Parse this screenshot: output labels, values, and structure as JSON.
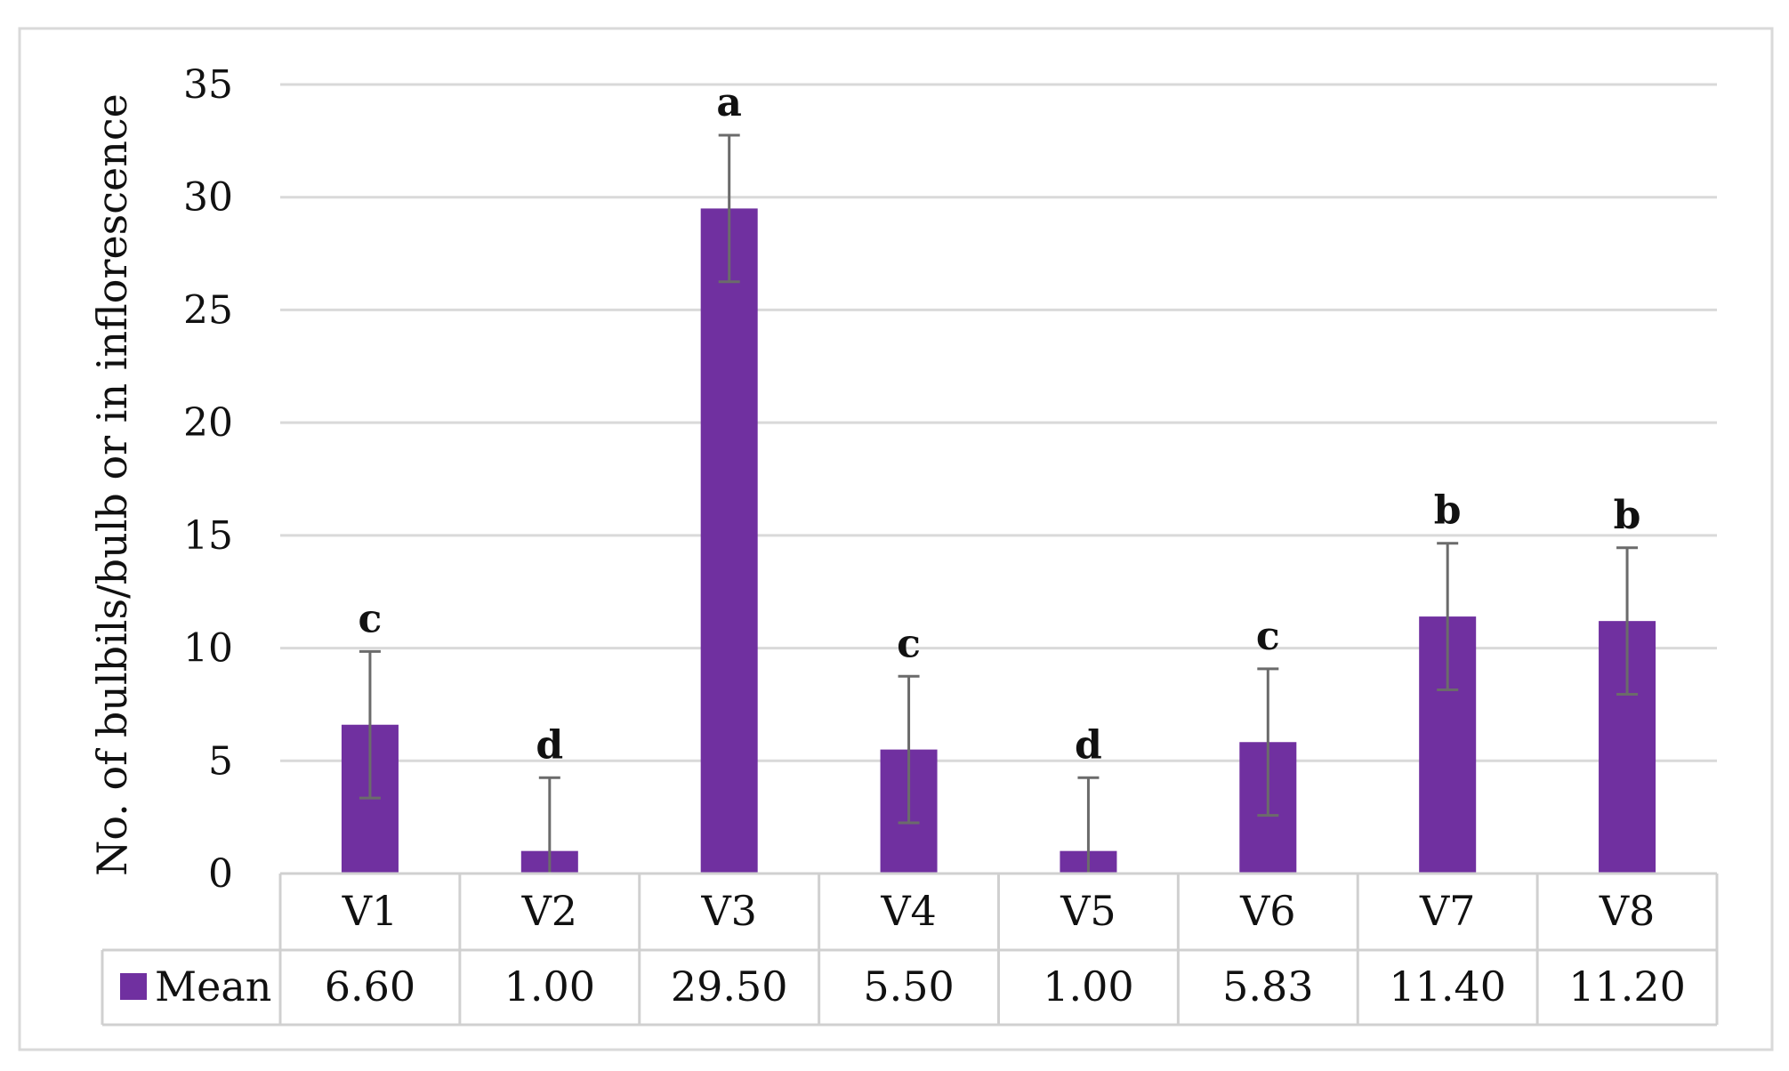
{
  "colors": {
    "bar": "#7030a0",
    "grid": "#d9d9d9",
    "error_bar": "#6b6b6b"
  },
  "chart_data": {
    "type": "bar",
    "title": "",
    "xlabel": "",
    "ylabel": "No. of bulbils/bulb or in inflorescence",
    "ylim": [
      0,
      35
    ],
    "yticks": [
      "0",
      "5",
      "10",
      "15",
      "20",
      "25",
      "30",
      "35"
    ],
    "grid": true,
    "legend_position": "data-table-left",
    "categories": [
      "V1",
      "V2",
      "V3",
      "V4",
      "V5",
      "V6",
      "V7",
      "V8"
    ],
    "series": [
      {
        "name": "Mean",
        "values": [
          6.6,
          1.0,
          29.5,
          5.5,
          1.0,
          5.83,
          11.4,
          11.2
        ],
        "value_labels": [
          "6.60",
          "1.00",
          "29.50",
          "5.50",
          "1.00",
          "5.83",
          "11.40",
          "11.20"
        ],
        "error": [
          3.25,
          3.25,
          3.25,
          3.25,
          3.25,
          3.25,
          3.25,
          3.25
        ],
        "significance": [
          "c",
          "d",
          "a",
          "c",
          "d",
          "c",
          "b",
          "b"
        ]
      }
    ]
  }
}
